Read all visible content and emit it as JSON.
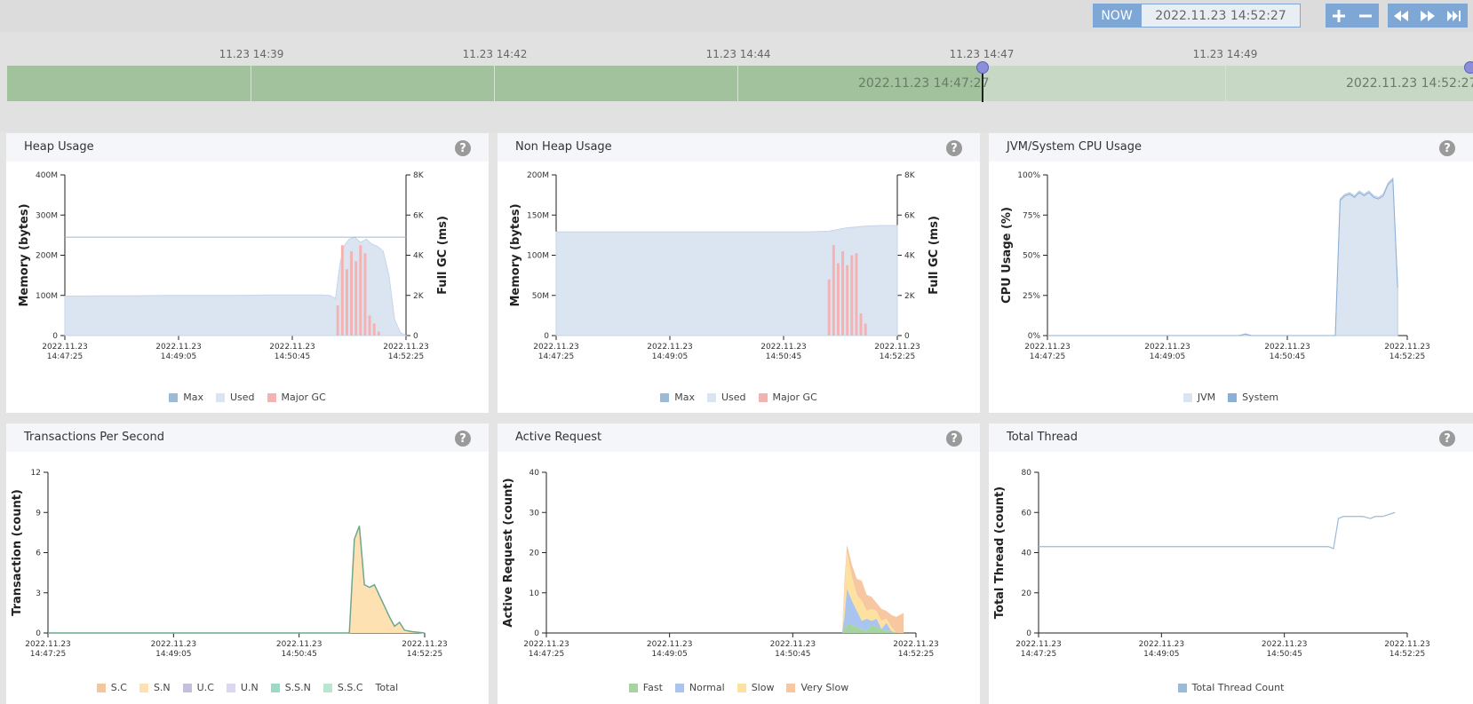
{
  "toolbar": {
    "now_label": "NOW",
    "current_time": "2022.11.23 14:52:27",
    "zoom_in_icon": "plus-icon",
    "zoom_out_icon": "minus-icon",
    "rewind_icon": "rewind-icon",
    "forward_icon": "fast-forward-icon",
    "skip_end_icon": "skip-to-end-icon",
    "accent_color": "#7ea7d6"
  },
  "timeline": {
    "tick_labels": [
      "11.23 14:39",
      "11.23 14:42",
      "11.23 14:44",
      "11.23 14:47",
      "11.23 14:49"
    ],
    "selected_time": "2022.11.23 14:47:27",
    "end_time": "2022.11.23 14:52:27",
    "selected_color": "#a1c29c",
    "bar_color": "#c7d8c4"
  },
  "panels": [
    {
      "title": "Heap Usage",
      "help": "?",
      "ylabel": "Memory (bytes)",
      "y2label": "Full GC (ms)",
      "yticks": [
        "400M",
        "300M",
        "200M",
        "100M",
        "0"
      ],
      "y2ticks": [
        "8K",
        "6K",
        "4K",
        "2K",
        "0"
      ],
      "xticks": [
        [
          "2022.11.23",
          "14:47:25"
        ],
        [
          "2022.11.23",
          "14:49:05"
        ],
        [
          "2022.11.23",
          "14:50:45"
        ],
        [
          "2022.11.23",
          "14:52:25"
        ]
      ],
      "legend": [
        {
          "label": "Max",
          "color": "#9bbad8"
        },
        {
          "label": "Used",
          "color": "#dbe5f1"
        },
        {
          "label": "Major GC",
          "color": "#f4b3b3"
        }
      ]
    },
    {
      "title": "Non Heap Usage",
      "help": "?",
      "ylabel": "Memory (bytes)",
      "y2label": "Full GC (ms)",
      "yticks": [
        "200M",
        "150M",
        "100M",
        "50M",
        "0"
      ],
      "y2ticks": [
        "8K",
        "6K",
        "4K",
        "2K",
        "0"
      ],
      "xticks": [
        [
          "2022.11.23",
          "14:47:25"
        ],
        [
          "2022.11.23",
          "14:49:05"
        ],
        [
          "2022.11.23",
          "14:50:45"
        ],
        [
          "2022.11.23",
          "14:52:25"
        ]
      ],
      "legend": [
        {
          "label": "Max",
          "color": "#9bbad8"
        },
        {
          "label": "Used",
          "color": "#dbe5f1"
        },
        {
          "label": "Major GC",
          "color": "#f4b3b3"
        }
      ]
    },
    {
      "title": "JVM/System CPU Usage",
      "help": "?",
      "ylabel": "CPU Usage (%)",
      "yticks": [
        "100%",
        "75%",
        "50%",
        "25%",
        "0%"
      ],
      "xticks": [
        [
          "2022.11.23",
          "14:47:25"
        ],
        [
          "2022.11.23",
          "14:49:05"
        ],
        [
          "2022.11.23",
          "14:50:45"
        ],
        [
          "2022.11.23",
          "14:52:25"
        ]
      ],
      "legend": [
        {
          "label": "JVM",
          "color": "#dbe5f1"
        },
        {
          "label": "System",
          "color": "#8cb0d4"
        }
      ]
    },
    {
      "title": "Transactions Per Second",
      "help": "?",
      "ylabel": "Transaction (count)",
      "yticks": [
        "12",
        "9",
        "6",
        "3",
        "0"
      ],
      "xticks": [
        [
          "2022.11.23",
          "14:47:25"
        ],
        [
          "2022.11.23",
          "14:49:05"
        ],
        [
          "2022.11.23",
          "14:50:45"
        ],
        [
          "2022.11.23",
          "14:52:25"
        ]
      ],
      "legend": [
        {
          "label": "S.C",
          "color": "#f2c79b"
        },
        {
          "label": "S.N",
          "color": "#fde1b3"
        },
        {
          "label": "U.C",
          "color": "#c3bfdc"
        },
        {
          "label": "U.N",
          "color": "#dcd6f2"
        },
        {
          "label": "S.S.N",
          "color": "#9cd9c7"
        },
        {
          "label": "S.S.C",
          "color": "#b8e6cf"
        },
        {
          "label": "Total",
          "color": ""
        }
      ]
    },
    {
      "title": "Active Request",
      "help": "?",
      "ylabel": "Active Request (count)",
      "yticks": [
        "40",
        "30",
        "20",
        "10",
        "0"
      ],
      "xticks": [
        [
          "2022.11.23",
          "14:47:25"
        ],
        [
          "2022.11.23",
          "14:49:05"
        ],
        [
          "2022.11.23",
          "14:50:45"
        ],
        [
          "2022.11.23",
          "14:52:25"
        ]
      ],
      "legend": [
        {
          "label": "Fast",
          "color": "#a6d3a0"
        },
        {
          "label": "Normal",
          "color": "#a9c4ee"
        },
        {
          "label": "Slow",
          "color": "#fde1a0"
        },
        {
          "label": "Very Slow",
          "color": "#f7c7a1"
        }
      ]
    },
    {
      "title": "Total Thread",
      "help": "?",
      "ylabel": "Total Thread (count)",
      "yticks": [
        "80",
        "60",
        "40",
        "20",
        "0"
      ],
      "xticks": [
        [
          "2022.11.23",
          "14:47:25"
        ],
        [
          "2022.11.23",
          "14:49:05"
        ],
        [
          "2022.11.23",
          "14:50:45"
        ],
        [
          "2022.11.23",
          "14:52:25"
        ]
      ],
      "legend": [
        {
          "label": "Total Thread Count",
          "color": "#9bbad8"
        }
      ]
    }
  ],
  "chart_data": [
    {
      "type": "area",
      "title": "Heap Usage",
      "ylabel": "Memory (bytes)",
      "y2label": "Full GC (ms)",
      "ylim": [
        0,
        400
      ],
      "y2lim": [
        0,
        8000
      ],
      "x": [
        0,
        30,
        60,
        90,
        120,
        150,
        180,
        210,
        225,
        233,
        238,
        242,
        246,
        250,
        255,
        260,
        265,
        270,
        275,
        280,
        285,
        290,
        295,
        300
      ],
      "series": [
        {
          "name": "Max",
          "values": [
            245,
            245,
            245,
            245,
            245,
            245,
            245,
            245,
            245,
            245,
            245,
            245,
            245,
            245,
            245,
            245,
            245,
            245,
            245,
            245,
            245,
            245,
            245,
            245
          ]
        },
        {
          "name": "Used",
          "values": [
            98,
            99,
            99,
            100,
            100,
            100,
            101,
            101,
            101,
            100,
            92,
            180,
            225,
            240,
            245,
            232,
            240,
            228,
            222,
            210,
            150,
            40,
            8,
            0
          ]
        },
        {
          "name": "Major GC",
          "bars": [
            [
              240,
              1500
            ],
            [
              244,
              4500
            ],
            [
              248,
              3300
            ],
            [
              252,
              4200
            ],
            [
              256,
              3700
            ],
            [
              260,
              4500
            ],
            [
              264,
              4100
            ],
            [
              268,
              1000
            ],
            [
              272,
              600
            ],
            [
              276,
              200
            ]
          ]
        }
      ]
    },
    {
      "type": "area",
      "title": "Non Heap Usage",
      "ylabel": "Memory (bytes)",
      "y2label": "Full GC (ms)",
      "ylim": [
        0,
        200
      ],
      "y2lim": [
        0,
        8000
      ],
      "x": [
        0,
        60,
        120,
        180,
        220,
        240,
        255,
        270,
        285,
        300
      ],
      "series": [
        {
          "name": "Used",
          "values": [
            129,
            129,
            129,
            129,
            129,
            130,
            134,
            136,
            137,
            137
          ]
        },
        {
          "name": "Major GC",
          "bars": [
            [
              240,
              2800
            ],
            [
              244,
              4500
            ],
            [
              248,
              3600
            ],
            [
              252,
              4200
            ],
            [
              256,
              3500
            ],
            [
              260,
              4000
            ],
            [
              264,
              4100
            ],
            [
              268,
              1100
            ],
            [
              272,
              600
            ]
          ]
        }
      ]
    },
    {
      "type": "area",
      "title": "JVM/System CPU Usage",
      "ylabel": "CPU Usage (%)",
      "ylim": [
        0,
        100
      ],
      "x": [
        0,
        160,
        165,
        170,
        240,
        244,
        248,
        252,
        256,
        260,
        264,
        268,
        272,
        276,
        280,
        284,
        288,
        292
      ],
      "series": [
        {
          "name": "JVM",
          "values": [
            0,
            0,
            1,
            0,
            0,
            85,
            88,
            89,
            87,
            90,
            88,
            90,
            87,
            86,
            88,
            95,
            98,
            30
          ]
        },
        {
          "name": "System",
          "values": [
            0,
            0,
            1,
            0,
            0,
            84,
            87,
            88,
            86,
            89,
            87,
            89,
            86,
            85,
            87,
            94,
            97,
            30
          ]
        }
      ]
    },
    {
      "type": "area",
      "title": "Transactions Per Second",
      "ylabel": "Transaction (count)",
      "ylim": [
        0,
        12
      ],
      "x": [
        0,
        240,
        244,
        248,
        252,
        256,
        260,
        264,
        268,
        272,
        276,
        280,
        284,
        290,
        300
      ],
      "series": [
        {
          "name": "S.N",
          "values": [
            0,
            0,
            6.8,
            8,
            3.5,
            3.3,
            3.6,
            2.8,
            2.0,
            1.2,
            0.4,
            0.8,
            0.1,
            0.1,
            0
          ]
        },
        {
          "name": "Total",
          "values": [
            0,
            0,
            7,
            8,
            3.6,
            3.4,
            3.6,
            2.8,
            2.0,
            1.2,
            0.5,
            0.8,
            0.2,
            0.1,
            0
          ]
        }
      ]
    },
    {
      "type": "area",
      "title": "Active Request",
      "ylabel": "Active Request (count)",
      "ylim": [
        0,
        40
      ],
      "x": [
        0,
        240,
        242,
        244,
        248,
        252,
        256,
        260,
        264,
        268,
        272,
        276,
        280,
        284,
        290
      ],
      "series": [
        {
          "name": "Fast",
          "values": [
            0,
            0,
            1,
            2,
            2,
            1.5,
            1,
            0.5,
            2,
            1.5,
            1,
            0.5,
            0.5,
            0,
            0
          ]
        },
        {
          "name": "Normal",
          "values": [
            0,
            0,
            3,
            9,
            6,
            4,
            2,
            3,
            1,
            2,
            0,
            2,
            0,
            0,
            0
          ]
        },
        {
          "name": "Slow",
          "values": [
            0,
            0,
            6,
            9,
            6,
            4,
            5,
            2,
            3,
            2,
            2,
            1,
            1,
            0,
            0
          ]
        },
        {
          "name": "Very Slow",
          "values": [
            0,
            0,
            3,
            2,
            3,
            4,
            5,
            4,
            3,
            2,
            3,
            2,
            3,
            4,
            5
          ]
        }
      ]
    },
    {
      "type": "line",
      "title": "Total Thread",
      "ylabel": "Total Thread (count)",
      "ylim": [
        0,
        80
      ],
      "x": [
        0,
        60,
        120,
        180,
        230,
        236,
        240,
        244,
        248,
        256,
        264,
        270,
        274,
        280,
        290
      ],
      "series": [
        {
          "name": "Total Thread Count",
          "values": [
            43,
            43,
            43,
            43,
            43,
            43,
            42,
            57,
            58,
            58,
            58,
            57,
            58,
            58,
            60
          ]
        }
      ]
    }
  ]
}
